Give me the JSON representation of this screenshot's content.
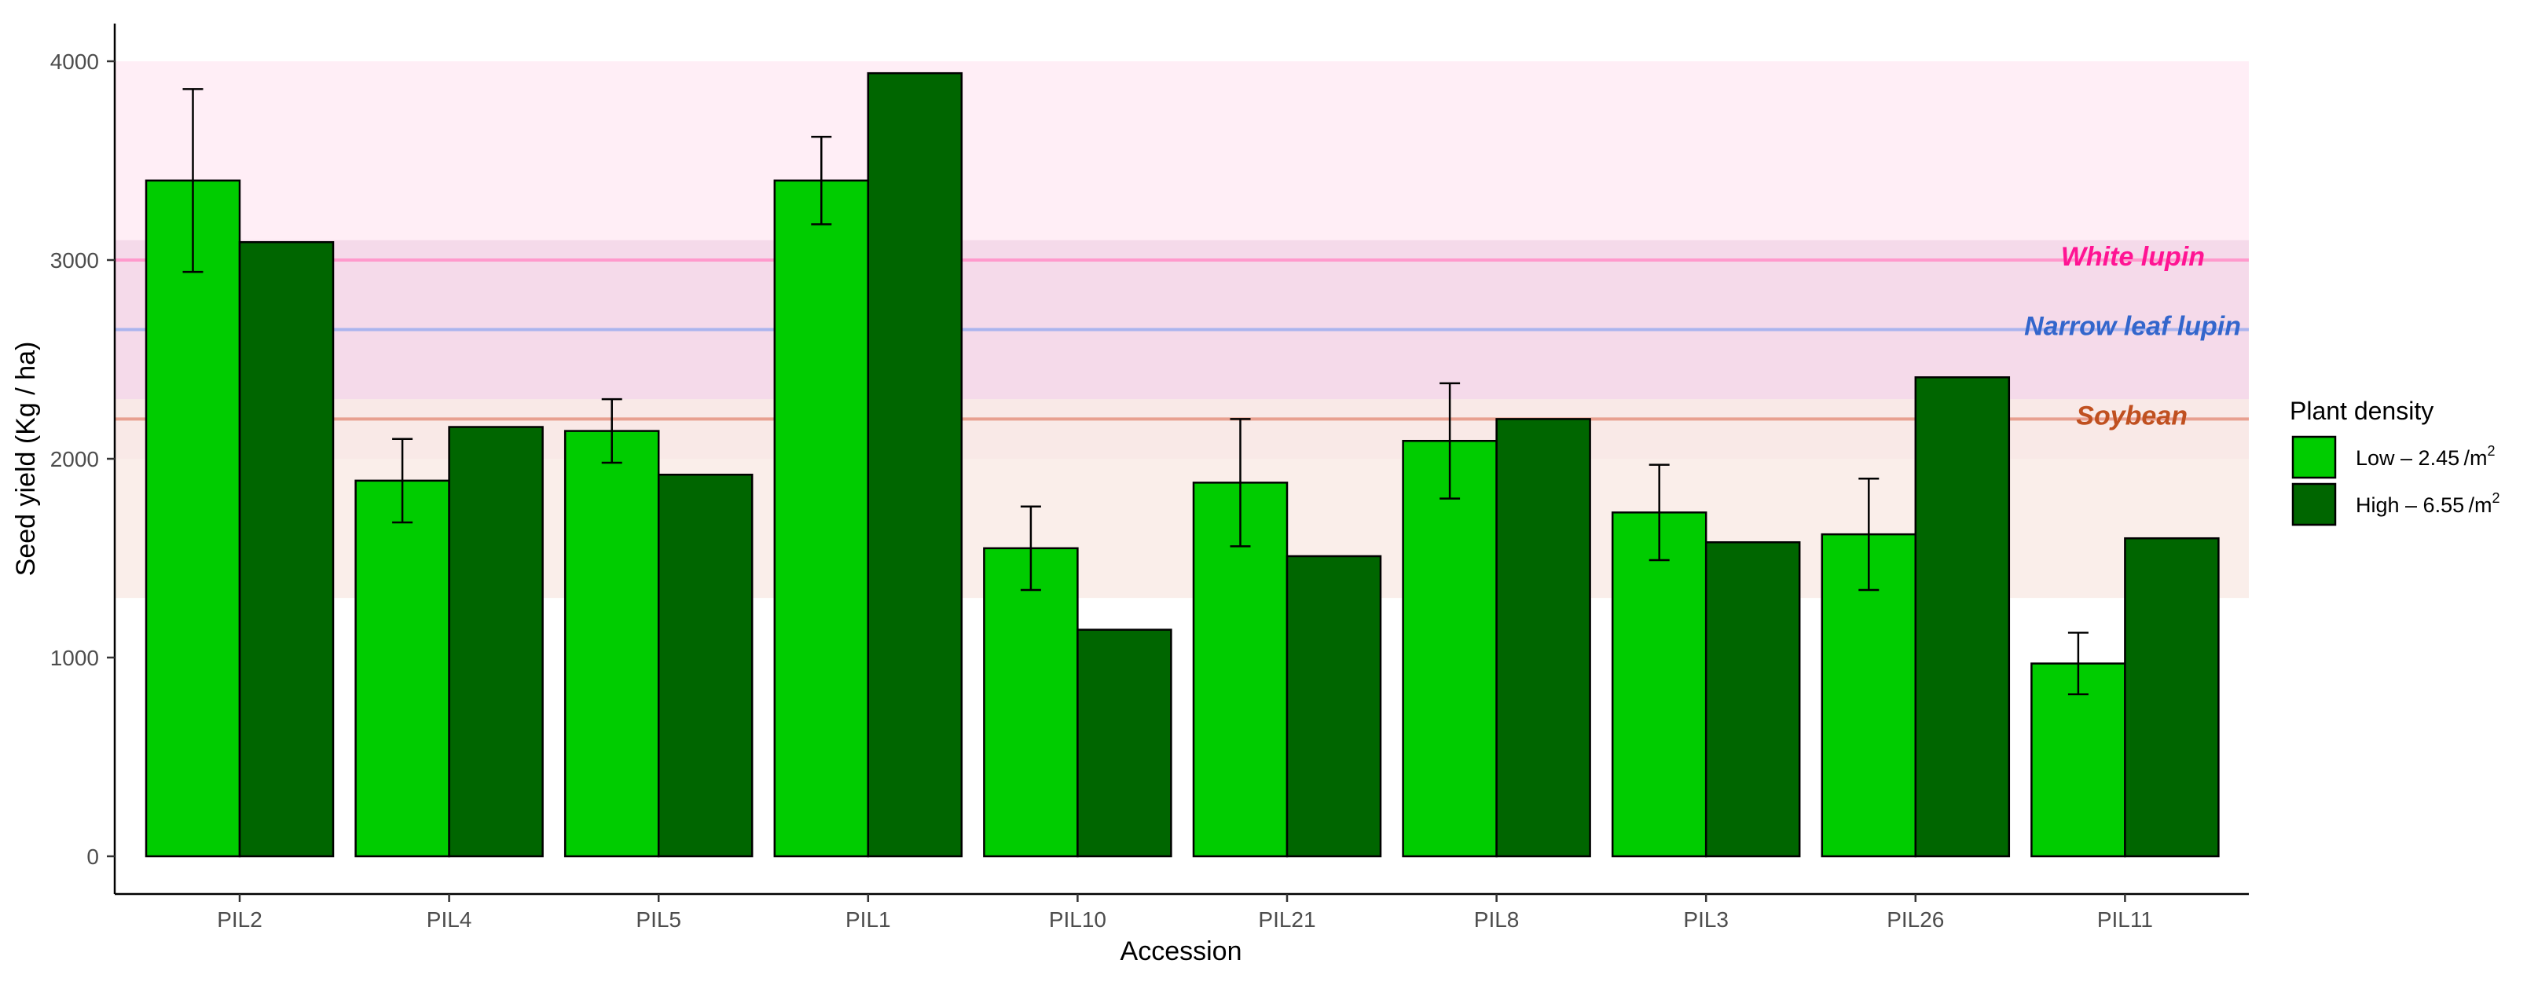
{
  "chart_data": {
    "type": "bar",
    "title": "",
    "xlabel": "Accession",
    "ylabel": "Seed yield (Kg / ha)",
    "ylim": [
      0,
      4000
    ],
    "yticks": [
      0,
      1000,
      2000,
      3000,
      4000
    ],
    "grid": false,
    "categories": [
      "PIL2",
      "PIL4",
      "PIL5",
      "PIL1",
      "PIL10",
      "PIL21",
      "PIL8",
      "PIL3",
      "PIL26",
      "PIL11"
    ],
    "series": [
      {
        "name": "Low",
        "label": "Low – 2.45",
        "unit": "/m",
        "unit_exp": "2",
        "color": "#00cc00",
        "values": [
          3400,
          1890,
          2140,
          3400,
          1550,
          1880,
          2090,
          1730,
          1620,
          970
        ],
        "errors": [
          460,
          210,
          160,
          220,
          210,
          320,
          290,
          240,
          280,
          155
        ]
      },
      {
        "name": "High",
        "label": "High – 6.55",
        "unit": "/m",
        "unit_exp": "2",
        "color": "#006600",
        "values": [
          3090,
          2160,
          1920,
          3940,
          1140,
          1510,
          2200,
          1580,
          2410,
          1600
        ],
        "errors": null
      }
    ],
    "reference_lines": [
      {
        "label": "White lupin",
        "value": 3000,
        "band": [
          2300,
          4000
        ],
        "line_color": "#ff99cc",
        "band_color": "#ffebf5",
        "text_color": "#ff1493"
      },
      {
        "label": "Narrow leaf lupin",
        "value": 2650,
        "band": [
          2000,
          3100
        ],
        "line_color": "#aab4ee",
        "band_color": "#f3d6e8",
        "text_color": "#3366cc"
      },
      {
        "label": "Soybean",
        "value": 2200,
        "band": [
          1300,
          2300
        ],
        "line_color": "#e8a090",
        "band_color": "#f9ebe6",
        "text_color": "#c05020"
      }
    ],
    "legend": {
      "title": "Plant density",
      "position": "right"
    }
  }
}
